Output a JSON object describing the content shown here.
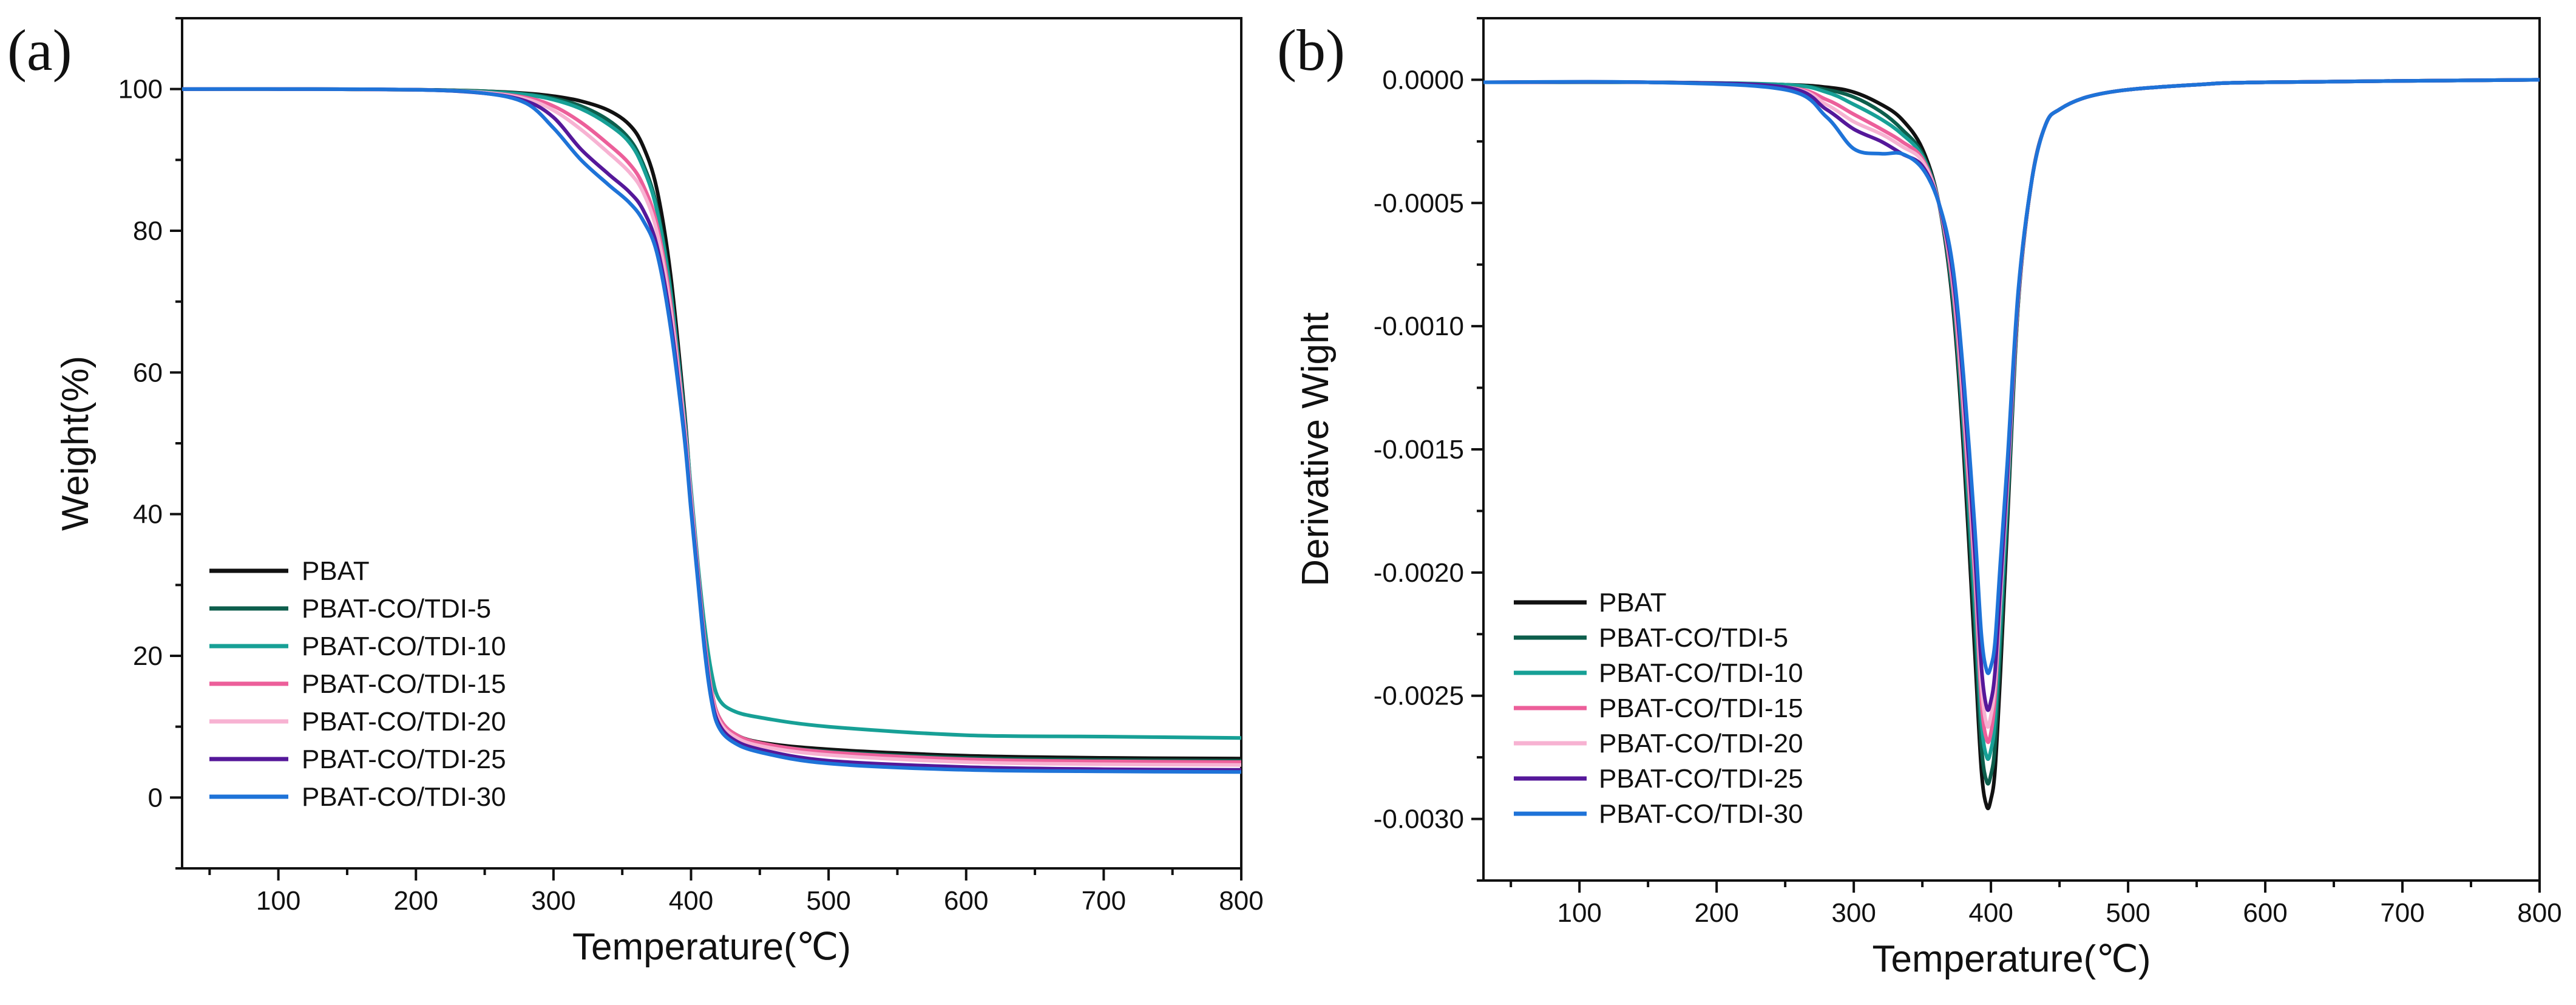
{
  "chart_data": [
    {
      "type": "line",
      "panel_label": "(a)",
      "title": "",
      "xlabel": "Temperature(℃)",
      "ylabel": "Weight(%)",
      "xlim": [
        30,
        800
      ],
      "ylim": [
        -10,
        110
      ],
      "xticks": [
        100,
        200,
        300,
        400,
        500,
        600,
        700,
        800
      ],
      "xtick_labels": [
        "100",
        "200",
        "300",
        "400",
        "500",
        "600",
        "700",
        "800"
      ],
      "yticks": [
        0,
        20,
        40,
        60,
        80,
        100
      ],
      "ytick_labels": [
        "0",
        "20",
        "40",
        "60",
        "80",
        "100"
      ],
      "legend_position": "bottom-left",
      "series": [
        {
          "name": "PBAT",
          "color": "#111111",
          "x": [
            30,
            100,
            200,
            250,
            280,
            300,
            320,
            340,
            355,
            365,
            375,
            385,
            395,
            400,
            405,
            410,
            415,
            420,
            430,
            450,
            500,
            600,
            700,
            800
          ],
          "y": [
            100,
            100,
            99.9,
            99.7,
            99.4,
            99.0,
            98.3,
            97.0,
            95.0,
            92.0,
            86.0,
            74.0,
            55.0,
            43.0,
            32.0,
            22.0,
            15.0,
            11.5,
            9.2,
            7.8,
            6.8,
            5.9,
            5.6,
            5.5
          ]
        },
        {
          "name": "PBAT-CO/TDI-5",
          "color": "#0d5e4c",
          "x": [
            30,
            100,
            200,
            250,
            280,
            300,
            320,
            340,
            355,
            365,
            375,
            385,
            395,
            400,
            405,
            410,
            415,
            420,
            430,
            450,
            500,
            600,
            700,
            800
          ],
          "y": [
            100,
            100,
            99.9,
            99.7,
            99.3,
            98.7,
            97.6,
            95.6,
            93.0,
            89.5,
            83.5,
            72.0,
            54.0,
            43.0,
            32.0,
            22.0,
            15.0,
            11.5,
            9.1,
            7.6,
            6.5,
            5.6,
            5.3,
            5.2
          ]
        },
        {
          "name": "PBAT-CO/TDI-10",
          "color": "#17a096",
          "x": [
            30,
            100,
            200,
            250,
            280,
            300,
            320,
            340,
            355,
            365,
            375,
            385,
            395,
            400,
            405,
            410,
            415,
            420,
            430,
            450,
            500,
            600,
            700,
            800
          ],
          "y": [
            100,
            100,
            99.9,
            99.6,
            99.2,
            98.5,
            97.2,
            95.0,
            92.5,
            89.0,
            83.0,
            71.5,
            54.0,
            43.5,
            33.0,
            24.0,
            17.5,
            14.0,
            12.3,
            11.3,
            10.0,
            8.8,
            8.6,
            8.4
          ]
        },
        {
          "name": "PBAT-CO/TDI-15",
          "color": "#ec5f9a",
          "x": [
            30,
            100,
            200,
            250,
            280,
            300,
            320,
            340,
            355,
            365,
            375,
            385,
            395,
            400,
            405,
            410,
            415,
            420,
            430,
            450,
            500,
            600,
            700,
            800
          ],
          "y": [
            100,
            100,
            99.9,
            99.5,
            98.8,
            97.6,
            95.3,
            92.2,
            89.5,
            86.5,
            81.0,
            70.0,
            53.0,
            42.5,
            32.0,
            22.0,
            15.0,
            11.5,
            9.2,
            7.7,
            6.4,
            5.4,
            5.1,
            5.0
          ]
        },
        {
          "name": "PBAT-CO/TDI-20",
          "color": "#f7b2d2",
          "x": [
            30,
            100,
            200,
            250,
            280,
            300,
            320,
            340,
            355,
            365,
            375,
            385,
            395,
            400,
            405,
            410,
            415,
            420,
            430,
            450,
            500,
            600,
            700,
            800
          ],
          "y": [
            100,
            100,
            99.9,
            99.5,
            98.6,
            97.0,
            94.3,
            91.0,
            88.3,
            85.5,
            80.0,
            69.0,
            52.5,
            42.0,
            31.5,
            21.5,
            14.5,
            11.0,
            8.8,
            7.3,
            6.0,
            5.0,
            4.7,
            4.6
          ]
        },
        {
          "name": "PBAT-CO/TDI-25",
          "color": "#55189a",
          "x": [
            30,
            100,
            200,
            250,
            280,
            300,
            320,
            340,
            355,
            365,
            375,
            385,
            395,
            400,
            405,
            410,
            415,
            420,
            430,
            450,
            500,
            600,
            700,
            800
          ],
          "y": [
            100,
            100,
            99.9,
            99.4,
            98.3,
            96.0,
            91.5,
            88.0,
            85.5,
            83.0,
            78.0,
            67.5,
            51.5,
            41.0,
            31.0,
            21.0,
            14.0,
            10.5,
            8.3,
            6.8,
            5.2,
            4.3,
            4.0,
            3.9
          ]
        },
        {
          "name": "PBAT-CO/TDI-30",
          "color": "#1e73d8",
          "x": [
            30,
            100,
            200,
            250,
            280,
            300,
            320,
            340,
            355,
            365,
            375,
            385,
            395,
            400,
            405,
            410,
            415,
            420,
            430,
            450,
            500,
            600,
            700,
            800
          ],
          "y": [
            100,
            100,
            99.9,
            99.4,
            98.0,
            94.5,
            90.0,
            86.5,
            84.0,
            81.5,
            77.0,
            66.5,
            51.0,
            40.5,
            30.5,
            20.5,
            13.5,
            10.0,
            7.9,
            6.4,
            4.8,
            3.9,
            3.7,
            3.6
          ]
        }
      ]
    },
    {
      "type": "line",
      "panel_label": "(b)",
      "title": "",
      "xlabel": "Temperature(℃)",
      "ylabel": "Derivative Wight",
      "xlim": [
        30,
        800
      ],
      "ylim": [
        -0.00325,
        0.00025
      ],
      "xticks": [
        100,
        200,
        300,
        400,
        500,
        600,
        700,
        800
      ],
      "xtick_labels": [
        "100",
        "200",
        "300",
        "400",
        "500",
        "600",
        "700",
        "800"
      ],
      "yticks": [
        0,
        -0.0005,
        -0.001,
        -0.0015,
        -0.002,
        -0.0025,
        -0.003
      ],
      "ytick_labels": [
        "0.0000",
        "-0.0005",
        "-0.0010",
        "-0.0015",
        "-0.0020",
        "-0.0025",
        "-0.0030"
      ],
      "legend_position": "bottom-left",
      "series": [
        {
          "name": "PBAT",
          "color": "#111111",
          "x": [
            30,
            150,
            250,
            280,
            300,
            320,
            335,
            350,
            362,
            372,
            380,
            388,
            393,
            397,
            400,
            403,
            407,
            412,
            420,
            430,
            440,
            450,
            470,
            500,
            550,
            600,
            800
          ],
          "y": [
            -1e-05,
            -1e-05,
            -2e-05,
            -3e-05,
            -5e-05,
            -0.0001,
            -0.00016,
            -0.00028,
            -0.0005,
            -0.0009,
            -0.0015,
            -0.0023,
            -0.0028,
            -0.00295,
            -0.00292,
            -0.0028,
            -0.0024,
            -0.0018,
            -0.0009,
            -0.0004,
            -0.00018,
            -0.00012,
            -7e-05,
            -4e-05,
            -2e-05,
            -1e-05,
            0
          ]
        },
        {
          "name": "PBAT-CO/TDI-5",
          "color": "#0d5e4c",
          "x": [
            30,
            150,
            250,
            280,
            300,
            320,
            335,
            350,
            362,
            372,
            380,
            388,
            393,
            397,
            400,
            403,
            407,
            412,
            420,
            430,
            440,
            450,
            470,
            500,
            550,
            600,
            800
          ],
          "y": [
            -1e-05,
            -1e-05,
            -2e-05,
            -4e-05,
            -7e-05,
            -0.00013,
            -0.0002,
            -0.0003,
            -0.0005,
            -0.00088,
            -0.00145,
            -0.0022,
            -0.0027,
            -0.00285,
            -0.00282,
            -0.0027,
            -0.0023,
            -0.00175,
            -0.0009,
            -0.0004,
            -0.00018,
            -0.00012,
            -7e-05,
            -4e-05,
            -2e-05,
            -1e-05,
            0
          ]
        },
        {
          "name": "PBAT-CO/TDI-10",
          "color": "#17a096",
          "x": [
            30,
            150,
            250,
            280,
            300,
            320,
            335,
            350,
            362,
            372,
            380,
            388,
            393,
            397,
            400,
            403,
            407,
            412,
            420,
            430,
            440,
            450,
            470,
            500,
            550,
            600,
            800
          ],
          "y": [
            -1e-05,
            -1e-05,
            -2e-05,
            -5e-05,
            -0.0001,
            -0.00016,
            -0.00022,
            -0.00031,
            -0.0005,
            -0.00085,
            -0.0014,
            -0.0021,
            -0.0026,
            -0.00275,
            -0.00272,
            -0.0026,
            -0.0022,
            -0.0017,
            -0.00088,
            -0.0004,
            -0.00018,
            -0.00012,
            -7e-05,
            -4e-05,
            -2e-05,
            -1e-05,
            0
          ]
        },
        {
          "name": "PBAT-CO/TDI-15",
          "color": "#ec5f9a",
          "x": [
            30,
            150,
            250,
            280,
            300,
            320,
            335,
            350,
            362,
            372,
            380,
            388,
            393,
            397,
            400,
            403,
            407,
            412,
            420,
            430,
            440,
            450,
            470,
            500,
            550,
            600,
            800
          ],
          "y": [
            -1e-05,
            -1e-05,
            -3e-05,
            -8e-05,
            -0.00014,
            -0.0002,
            -0.00025,
            -0.00032,
            -0.0005,
            -0.00083,
            -0.00135,
            -0.002,
            -0.00252,
            -0.00268,
            -0.00265,
            -0.0025,
            -0.0021,
            -0.00165,
            -0.00088,
            -0.0004,
            -0.00018,
            -0.00012,
            -7e-05,
            -4e-05,
            -2e-05,
            -1e-05,
            0
          ]
        },
        {
          "name": "PBAT-CO/TDI-20",
          "color": "#f7b2d2",
          "x": [
            30,
            150,
            250,
            280,
            300,
            320,
            335,
            350,
            362,
            372,
            380,
            388,
            393,
            397,
            400,
            403,
            407,
            412,
            420,
            430,
            440,
            450,
            470,
            500,
            550,
            600,
            800
          ],
          "y": [
            -1e-05,
            -1e-05,
            -3e-05,
            -0.0001,
            -0.00017,
            -0.00022,
            -0.00027,
            -0.00033,
            -0.0005,
            -0.0008,
            -0.0013,
            -0.00195,
            -0.00245,
            -0.00262,
            -0.00258,
            -0.00245,
            -0.0021,
            -0.00163,
            -0.00087,
            -0.0004,
            -0.00018,
            -0.00012,
            -7e-05,
            -4e-05,
            -2e-05,
            -1e-05,
            0
          ]
        },
        {
          "name": "PBAT-CO/TDI-25",
          "color": "#55189a",
          "x": [
            30,
            150,
            250,
            280,
            300,
            320,
            335,
            350,
            362,
            372,
            380,
            388,
            393,
            397,
            400,
            403,
            407,
            412,
            420,
            430,
            440,
            450,
            470,
            500,
            550,
            600,
            800
          ],
          "y": [
            -1e-05,
            -1e-05,
            -3e-05,
            -0.00012,
            -0.0002,
            -0.00025,
            -0.0003,
            -0.00035,
            -0.0005,
            -0.00078,
            -0.00125,
            -0.0019,
            -0.00238,
            -0.00255,
            -0.00252,
            -0.0024,
            -0.00205,
            -0.0016,
            -0.00086,
            -0.0004,
            -0.00018,
            -0.00012,
            -7e-05,
            -4e-05,
            -2e-05,
            -1e-05,
            0
          ]
        },
        {
          "name": "PBAT-CO/TDI-30",
          "color": "#1e73d8",
          "x": [
            30,
            150,
            250,
            280,
            300,
            320,
            335,
            350,
            362,
            372,
            380,
            388,
            393,
            397,
            400,
            403,
            407,
            412,
            420,
            430,
            440,
            450,
            470,
            500,
            550,
            600,
            800
          ],
          "y": [
            -1e-05,
            -1e-05,
            -4e-05,
            -0.00015,
            -0.00028,
            -0.0003,
            -0.0003,
            -0.00036,
            -0.0005,
            -0.00075,
            -0.0012,
            -0.0018,
            -0.00225,
            -0.0024,
            -0.00238,
            -0.00228,
            -0.00195,
            -0.00155,
            -0.00085,
            -0.0004,
            -0.00018,
            -0.00012,
            -7e-05,
            -4e-05,
            -2e-05,
            -1e-05,
            0
          ]
        }
      ]
    }
  ]
}
